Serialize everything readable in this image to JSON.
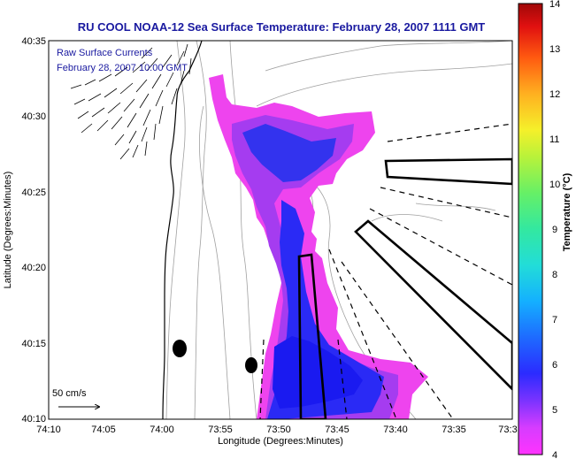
{
  "header": {
    "title": "RU COOL  NOAA-12  Sea Surface Temperature:  February 28, 2007 1111 GMT"
  },
  "inset": {
    "line1": "Raw Surface Currents",
    "line2": "February 28, 2007 10:00 GMT"
  },
  "axes": {
    "x_label": "Longitude (Degrees:Minutes)",
    "y_label": "Latitude (Degrees:Minutes)",
    "x_ticks": [
      "74:10",
      "74:05",
      "74:00",
      "73:55",
      "73:50",
      "73:45",
      "73:40",
      "73:35",
      "73:3"
    ],
    "y_ticks": [
      "40:35",
      "40:30",
      "40:25",
      "40:20",
      "40:15",
      "40:10"
    ]
  },
  "scale": {
    "label": "50 cm/s"
  },
  "colorbar": {
    "label": "Temperature (°C)",
    "ticks": [
      "14",
      "13",
      "12",
      "11",
      "10",
      "9",
      "8",
      "7",
      "6",
      "5",
      "4"
    ],
    "min": 4,
    "max": 14
  }
}
